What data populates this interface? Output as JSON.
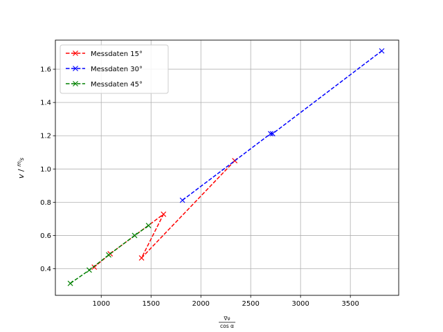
{
  "chart_data": {
    "type": "line",
    "xlabel_num": "∇ν",
    "xlabel_den": "cos α",
    "ylabel": "v / m/s",
    "xlim": [
      540,
      3985
    ],
    "ylim": [
      0.24,
      1.775
    ],
    "xticks": [
      1000,
      1500,
      2000,
      2500,
      3000,
      3500
    ],
    "yticks": [
      0.4,
      0.6,
      0.8,
      1.0,
      1.2,
      1.4,
      1.6
    ],
    "ytick_labels": [
      "0.4",
      "0.6",
      "0.8",
      "1.0",
      "1.2",
      "1.4",
      "1.6"
    ],
    "grid": true,
    "legend_position": "upper-left",
    "series": [
      {
        "name": "Messdaten 15°",
        "color": "#ff0000",
        "points": [
          [
            2340,
            1.05
          ],
          [
            1405,
            0.465
          ],
          [
            1625,
            0.728
          ],
          [
            1090,
            0.49
          ],
          [
            930,
            0.41
          ]
        ]
      },
      {
        "name": "Messdaten 30°",
        "color": "#0000ff",
        "points": [
          [
            1815,
            0.812
          ],
          [
            2700,
            1.212
          ],
          [
            2720,
            1.212
          ],
          [
            3815,
            1.71
          ]
        ]
      },
      {
        "name": "Messdaten 45°",
        "color": "#008000",
        "points": [
          [
            690,
            0.312
          ],
          [
            880,
            0.392
          ],
          [
            1075,
            0.483
          ],
          [
            1335,
            0.6
          ],
          [
            1475,
            0.66
          ]
        ]
      }
    ]
  }
}
